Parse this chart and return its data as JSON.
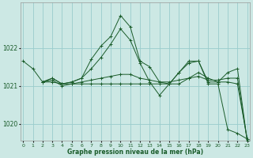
{
  "xlabel": "Graphe pression niveau de la mer (hPa)",
  "bg_color": "#cce8e4",
  "grid_color": "#99cccc",
  "line_color": "#1a5c2a",
  "series": [
    {
      "x": [
        0,
        1,
        2,
        3,
        4,
        5,
        6,
        7,
        8,
        9,
        10,
        11,
        12,
        13,
        14,
        15,
        16,
        17,
        18,
        19,
        20,
        21,
        22,
        23
      ],
      "y": [
        1021.65,
        1021.45,
        1021.1,
        1021.2,
        1021.05,
        1021.1,
        1021.2,
        1021.7,
        1022.05,
        1022.3,
        1022.85,
        1022.55,
        1021.65,
        1021.5,
        1021.1,
        1021.05,
        1021.35,
        1021.6,
        1021.65,
        1021.05,
        1021.05,
        1019.85,
        1019.75,
        1019.6
      ]
    },
    {
      "x": [
        2,
        3,
        4,
        5,
        6,
        7,
        8,
        9,
        10,
        11,
        12,
        13,
        14,
        15,
        16,
        17,
        18,
        19,
        20,
        21,
        22,
        23
      ],
      "y": [
        1021.1,
        1021.2,
        1021.05,
        1021.1,
        1021.2,
        1021.45,
        1021.75,
        1022.1,
        1022.5,
        1022.2,
        1021.6,
        1021.1,
        1020.75,
        1021.05,
        1021.35,
        1021.65,
        1021.65,
        1021.1,
        1021.1,
        1021.1,
        1021.05,
        1019.6
      ]
    },
    {
      "x": [
        2,
        3,
        4,
        5,
        6,
        7,
        8,
        9,
        10,
        11,
        12,
        13,
        14,
        15,
        16,
        17,
        18,
        19,
        20,
        21,
        22,
        23
      ],
      "y": [
        1021.1,
        1021.15,
        1021.0,
        1021.05,
        1021.1,
        1021.15,
        1021.2,
        1021.25,
        1021.3,
        1021.3,
        1021.2,
        1021.15,
        1021.1,
        1021.1,
        1021.15,
        1021.2,
        1021.25,
        1021.15,
        1021.15,
        1021.2,
        1021.2,
        1019.55
      ]
    },
    {
      "x": [
        2,
        3,
        4,
        5,
        6,
        7,
        8,
        9,
        10,
        11,
        12,
        13,
        14,
        15,
        16,
        17,
        18,
        19,
        20,
        21,
        22,
        23
      ],
      "y": [
        1021.1,
        1021.1,
        1021.05,
        1021.05,
        1021.05,
        1021.05,
        1021.05,
        1021.05,
        1021.05,
        1021.05,
        1021.05,
        1021.05,
        1021.05,
        1021.05,
        1021.05,
        1021.2,
        1021.35,
        1021.2,
        1021.1,
        1021.35,
        1021.45,
        1019.55
      ]
    }
  ],
  "ylim": [
    1019.55,
    1023.2
  ],
  "yticks": [
    1020.0,
    1021.0,
    1022.0
  ],
  "ytick_labels": [
    "1020",
    "1021",
    "1022"
  ],
  "xlim": [
    -0.3,
    23.3
  ],
  "xticks": [
    0,
    1,
    2,
    3,
    4,
    5,
    6,
    7,
    8,
    9,
    10,
    11,
    12,
    13,
    14,
    15,
    16,
    17,
    18,
    19,
    20,
    21,
    22,
    23
  ],
  "xtick_labels": [
    "0",
    "1",
    "2",
    "3",
    "4",
    "5",
    "6",
    "7",
    "8",
    "9",
    "10",
    "11",
    "12",
    "13",
    "14",
    "15",
    "16",
    "17",
    "18",
    "19",
    "20",
    "21",
    "22",
    "23"
  ]
}
